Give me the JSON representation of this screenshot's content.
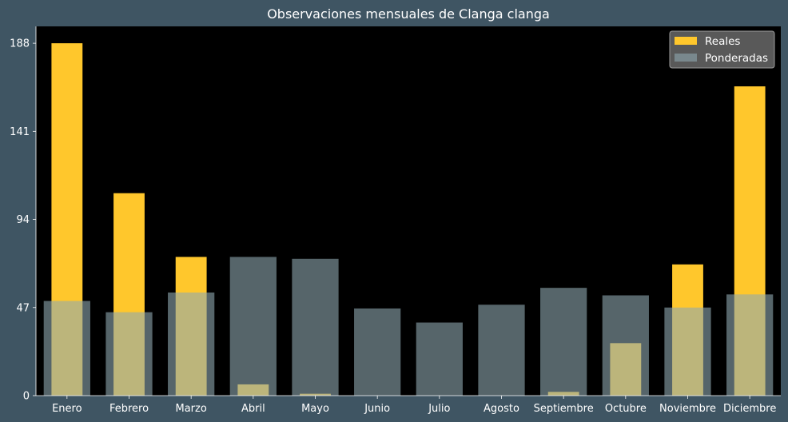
{
  "chart_data": {
    "type": "bar",
    "title": "Observaciones mensuales de Clanga clanga",
    "xlabel": "",
    "ylabel": "",
    "categories": [
      "Enero",
      "Febrero",
      "Marzo",
      "Abril",
      "Mayo",
      "Junio",
      "Julio",
      "Agosto",
      "Septiembre",
      "Octubre",
      "Noviembre",
      "Diciembre"
    ],
    "series": [
      {
        "name": "Reales",
        "values": [
          188,
          108,
          74,
          6,
          1,
          0,
          0,
          0,
          2,
          28,
          70,
          165
        ],
        "color": "#ffc72c"
      },
      {
        "name": "Ponderadas",
        "values": [
          50.5,
          44.5,
          55,
          74,
          73,
          46.5,
          39,
          48.5,
          57.5,
          53.5,
          47,
          54
        ],
        "color": "#8fa8b0"
      }
    ],
    "ylim": [
      0,
      197
    ],
    "yticks": [
      0,
      47,
      94,
      141,
      188
    ],
    "grid": false,
    "legend_position": "top-right",
    "background": "#000000",
    "figure_background": "#3f5563"
  }
}
